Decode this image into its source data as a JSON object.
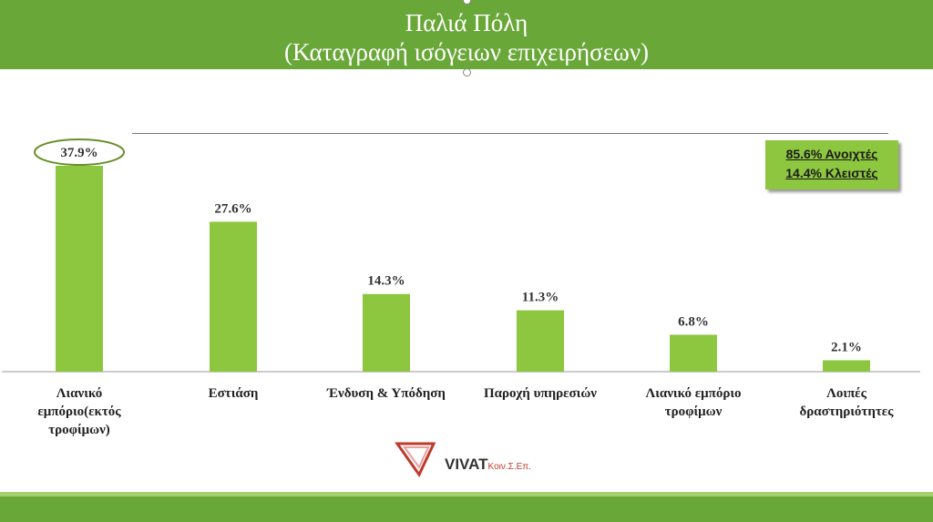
{
  "header": {
    "title_line1": "Παλιά Πόλη",
    "title_line2": "(Καταγραφή ισόγειων επιχειρήσεων)"
  },
  "legend": {
    "open_label": "85.6% Ανοιχτές",
    "closed_label": "14.4% Κλειστές"
  },
  "logo": {
    "text": "VIVAT",
    "sub": "Κοιν.Σ.Επ."
  },
  "chart_data": {
    "type": "bar",
    "categories": [
      "Λιανικό εμπόριο(εκτός τροφίμων)",
      "Εστιάση",
      "Ένδυση & Υπόδηση",
      "Παροχή υπηρεσιών",
      "Λιανικό εμπόριο τροφίμων",
      "Λοιπές δραστηριότητες"
    ],
    "category_lines": [
      [
        "Λιανικό",
        "εμπόριο(εκτός",
        "τροφίμων)"
      ],
      [
        "Εστιάση"
      ],
      [
        "Ένδυση & Υπόδηση"
      ],
      [
        "Παροχή υπηρεσιών"
      ],
      [
        "Λιανικό εμπόριο",
        "τροφίμων"
      ],
      [
        "Λοιπές",
        "δραστηριότητες"
      ]
    ],
    "values": [
      37.9,
      27.6,
      14.3,
      11.3,
      6.8,
      2.1
    ],
    "data_labels": [
      "37.9%",
      "27.6%",
      "14.3%",
      "11.3%",
      "6.8%",
      "2.1%"
    ],
    "highlighted_index": 0,
    "bar_color": "#8dc63f",
    "ylim": [
      0,
      40
    ]
  }
}
